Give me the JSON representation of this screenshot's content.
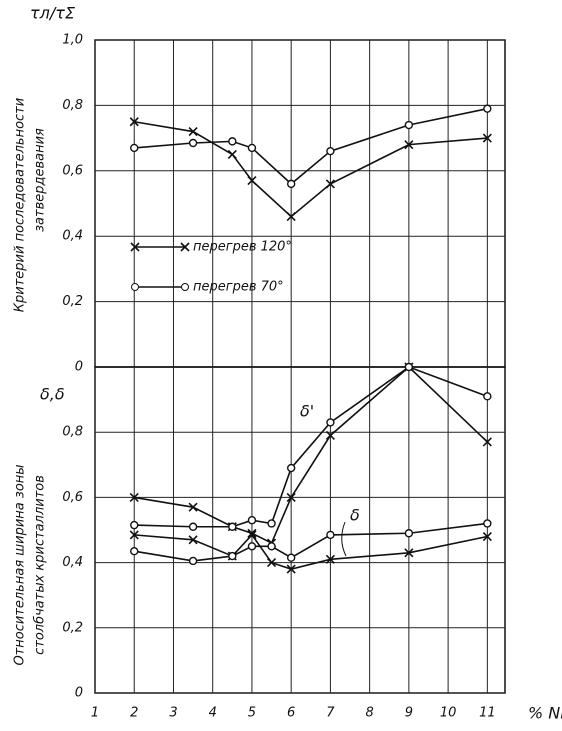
{
  "chart_data": [
    {
      "type": "line",
      "ysymbol": "τл/τΣ",
      "ylabel": [
        "Критерий последовательности",
        "затвердевания"
      ],
      "x": [
        2,
        3.5,
        4.5,
        5,
        6,
        7,
        9,
        11
      ],
      "series": [
        {
          "name": "перегрев 120°",
          "marker": "x",
          "color": "#111111",
          "values": [
            0.75,
            0.72,
            0.65,
            0.57,
            0.46,
            0.56,
            0.68,
            0.7
          ]
        },
        {
          "name": "перегрев 70°",
          "marker": "o",
          "color": "#111111",
          "values": [
            0.67,
            0.685,
            0.69,
            0.67,
            0.56,
            0.66,
            0.74,
            0.79
          ]
        }
      ],
      "ylim": [
        0,
        1.0
      ],
      "yticks": [
        {
          "value": 1.0,
          "label": "1,0"
        },
        {
          "value": 0.8,
          "label": "0,8"
        },
        {
          "value": 0.6,
          "label": "0,6"
        },
        {
          "value": 0.4,
          "label": "0,4"
        },
        {
          "value": 0.2,
          "label": "0,2"
        },
        0
      ],
      "grid": true,
      "legend": "center-left"
    },
    {
      "type": "line",
      "ysymbol": "δ,δ",
      "ylabel": [
        "Относительная ширина зоны",
        "столбчатых кристаллитов"
      ],
      "xlabel": "% Ni",
      "xlim": [
        1,
        11.45
      ],
      "xticks": [
        1,
        2,
        3,
        4,
        5,
        6,
        7,
        8,
        9,
        10,
        11
      ],
      "x": [
        2,
        3.5,
        4.5,
        5,
        5.5,
        6,
        7,
        9,
        11
      ],
      "series": [
        {
          "marker": "x",
          "color": "#111111",
          "values": [
            0.6,
            0.57,
            0.51,
            0.49,
            0.46,
            0.6,
            0.79,
            1.0,
            0.77
          ]
        },
        {
          "marker": "o",
          "color": "#111111",
          "values": [
            0.515,
            0.51,
            0.51,
            0.53,
            0.52,
            0.69,
            0.83,
            1.0,
            0.91
          ]
        },
        {
          "marker": "x",
          "color": "#111111",
          "values": [
            0.485,
            0.47,
            0.42,
            0.485,
            0.4,
            0.38,
            0.41,
            0.43,
            0.48
          ]
        },
        {
          "marker": "o",
          "color": "#111111",
          "values": [
            0.435,
            0.405,
            0.42,
            0.45,
            0.45,
            0.415,
            0.485,
            0.49,
            0.52
          ]
        }
      ],
      "annotations": [
        "δ'",
        "δ"
      ],
      "ylim": [
        0,
        1.0
      ],
      "yticks": [
        {
          "value": 0.8,
          "label": "0,8"
        },
        {
          "value": 0.6,
          "label": "0,6"
        },
        {
          "value": 0.4,
          "label": "0,4"
        },
        {
          "value": 0.2,
          "label": "0,2"
        },
        0
      ],
      "grid": true
    }
  ]
}
